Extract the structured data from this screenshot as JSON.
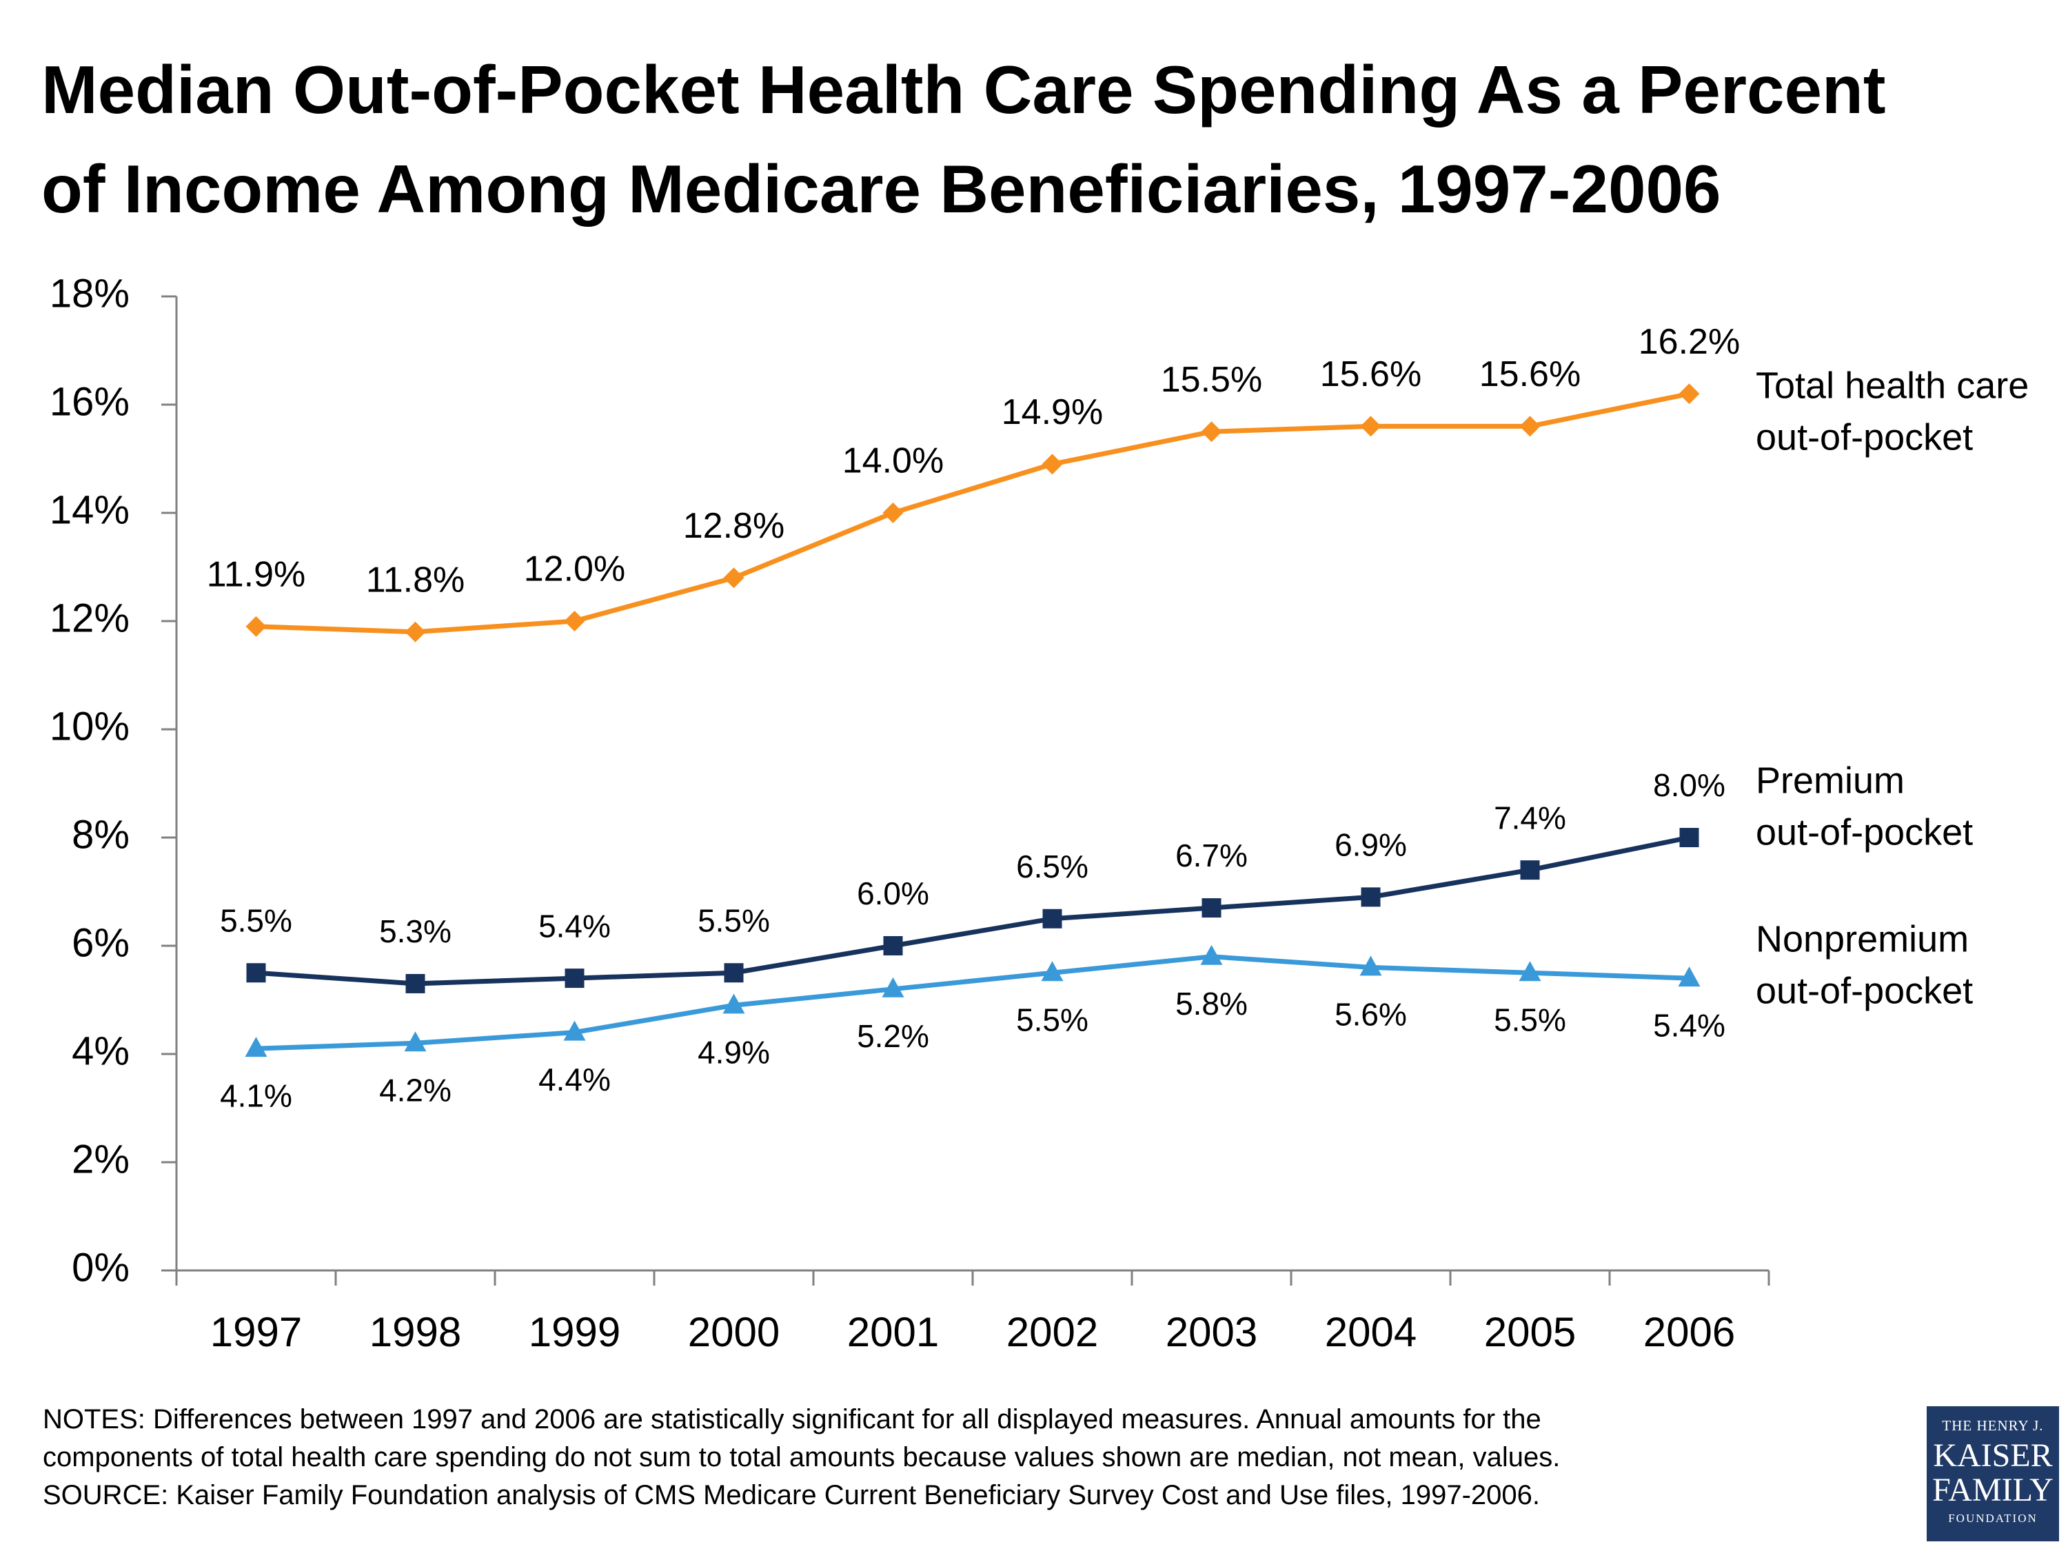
{
  "title_lines": [
    "Median Out-of-Pocket Health Care Spending As a Percent",
    "of Income Among Medicare Beneficiaries, 1997-2006"
  ],
  "notes": [
    "NOTES: Differences between 1997 and 2006 are statistically significant for all displayed measures.  Annual amounts for the",
    "components of total health care spending do not sum to total amounts because values shown are median, not mean, values.",
    "SOURCE: Kaiser Family Foundation analysis of CMS Medicare Current Beneficiary Survey Cost and Use files, 1997-2006."
  ],
  "logo": {
    "line1": "THE HENRY J.",
    "line2": "KAISER",
    "line3": "FAMILY",
    "line4": "FOUNDATION"
  },
  "chart_data": {
    "type": "line",
    "title": "Median Out-of-Pocket Health Care Spending As a Percent of Income Among Medicare Beneficiaries, 1997-2006",
    "xlabel": "",
    "ylabel": "",
    "categories": [
      "1997",
      "1998",
      "1999",
      "2000",
      "2001",
      "2002",
      "2003",
      "2004",
      "2005",
      "2006"
    ],
    "ylim": [
      0,
      18
    ],
    "yticks": [
      0,
      2,
      4,
      6,
      8,
      10,
      12,
      14,
      16,
      18
    ],
    "ytick_labels": [
      "0%",
      "2%",
      "4%",
      "6%",
      "8%",
      "10%",
      "12%",
      "14%",
      "16%",
      "18%"
    ],
    "grid": false,
    "legend": "series labels at right end of lines",
    "series": [
      {
        "name": "Total health care out-of-pocket",
        "label_lines": [
          "Total health care",
          "out-of-pocket"
        ],
        "color": "#f7901e",
        "marker": "diamond",
        "values": [
          11.9,
          11.8,
          12.0,
          12.8,
          14.0,
          14.9,
          15.5,
          15.6,
          15.6,
          16.2
        ],
        "data_labels": [
          "11.9%",
          "11.8%",
          "12.0%",
          "12.8%",
          "14.0%",
          "14.9%",
          "15.5%",
          "15.6%",
          "15.6%",
          "16.2%"
        ]
      },
      {
        "name": "Premium out-of-pocket",
        "label_lines": [
          "Premium",
          "out-of-pocket"
        ],
        "color": "#17325c",
        "marker": "square",
        "values": [
          5.5,
          5.3,
          5.4,
          5.5,
          6.0,
          6.5,
          6.7,
          6.9,
          7.4,
          8.0
        ],
        "data_labels": [
          "5.5%",
          "5.3%",
          "5.4%",
          "5.5%",
          "6.0%",
          "6.5%",
          "6.7%",
          "6.9%",
          "7.4%",
          "8.0%"
        ]
      },
      {
        "name": "Nonpremium out-of-pocket",
        "label_lines": [
          "Nonpremium",
          "out-of-pocket"
        ],
        "color": "#3a9ad9",
        "marker": "triangle",
        "values": [
          4.1,
          4.2,
          4.4,
          4.9,
          5.2,
          5.5,
          5.8,
          5.6,
          5.5,
          5.4
        ],
        "data_labels": [
          "4.1%",
          "4.2%",
          "4.4%",
          "4.9%",
          "5.2%",
          "5.5%",
          "5.8%",
          "5.6%",
          "5.5%",
          "5.4%"
        ]
      }
    ]
  }
}
